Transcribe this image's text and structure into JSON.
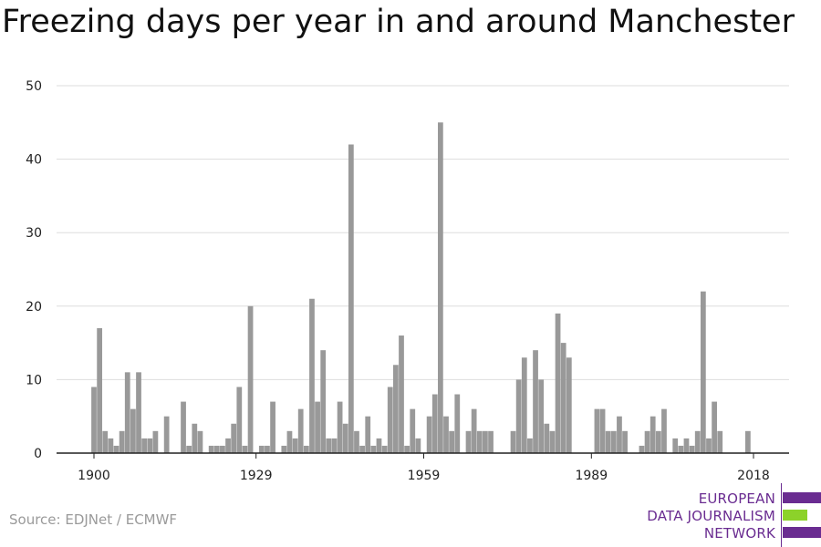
{
  "title": "Freezing days per year in and around Manchester",
  "source": "Source: EDJNet / ECMWF",
  "logo": {
    "lines": [
      "EUROPEAN",
      "DATA JOURNALISM",
      "NETWORK"
    ],
    "colors": [
      "#6a2c91",
      "#8cd22a",
      "#6a2c91"
    ]
  },
  "chart_data": {
    "type": "bar",
    "title": "Freezing days per year in and around Manchester",
    "xlabel": "",
    "ylabel": "",
    "ylim": [
      0,
      50
    ],
    "xlim": [
      1900,
      2018
    ],
    "yticks": [
      0,
      10,
      20,
      30,
      40,
      50
    ],
    "xticks": [
      1900,
      1929,
      1959,
      1989,
      2018
    ],
    "grid": true,
    "bar_color": "#999999",
    "years": [
      1900,
      1901,
      1902,
      1903,
      1904,
      1905,
      1906,
      1907,
      1908,
      1909,
      1910,
      1911,
      1912,
      1913,
      1914,
      1915,
      1916,
      1917,
      1918,
      1919,
      1920,
      1921,
      1922,
      1923,
      1924,
      1925,
      1926,
      1927,
      1928,
      1929,
      1930,
      1931,
      1932,
      1933,
      1934,
      1935,
      1936,
      1937,
      1938,
      1939,
      1940,
      1941,
      1942,
      1943,
      1944,
      1945,
      1946,
      1947,
      1948,
      1949,
      1950,
      1951,
      1952,
      1953,
      1954,
      1955,
      1956,
      1957,
      1958,
      1959,
      1960,
      1961,
      1962,
      1963,
      1964,
      1965,
      1966,
      1967,
      1968,
      1969,
      1970,
      1971,
      1972,
      1973,
      1974,
      1975,
      1976,
      1977,
      1978,
      1979,
      1980,
      1981,
      1982,
      1983,
      1984,
      1985,
      1986,
      1987,
      1988,
      1989,
      1990,
      1991,
      1992,
      1993,
      1994,
      1995,
      1996,
      1997,
      1998,
      1999,
      2000,
      2001,
      2002,
      2003,
      2004,
      2005,
      2006,
      2007,
      2008,
      2009,
      2010,
      2011,
      2012,
      2013,
      2014,
      2015,
      2016,
      2017,
      2018
    ],
    "values": [
      9,
      17,
      3,
      2,
      1,
      3,
      11,
      6,
      11,
      2,
      2,
      3,
      0,
      5,
      0,
      0,
      7,
      1,
      4,
      3,
      0,
      1,
      1,
      1,
      2,
      4,
      9,
      1,
      20,
      0,
      1,
      1,
      7,
      0,
      1,
      3,
      2,
      6,
      1,
      21,
      7,
      14,
      2,
      2,
      7,
      4,
      42,
      3,
      1,
      5,
      1,
      2,
      1,
      9,
      12,
      16,
      1,
      6,
      2,
      0,
      5,
      8,
      45,
      5,
      3,
      8,
      0,
      3,
      6,
      3,
      3,
      3,
      0,
      0,
      0,
      3,
      10,
      13,
      2,
      14,
      10,
      4,
      3,
      19,
      15,
      13,
      0,
      0,
      0,
      0,
      6,
      6,
      3,
      3,
      5,
      3,
      0,
      0,
      1,
      3,
      5,
      3,
      6,
      0,
      2,
      1,
      2,
      1,
      3,
      22,
      2,
      7,
      3,
      0,
      0,
      0,
      0,
      3,
      0
    ]
  }
}
